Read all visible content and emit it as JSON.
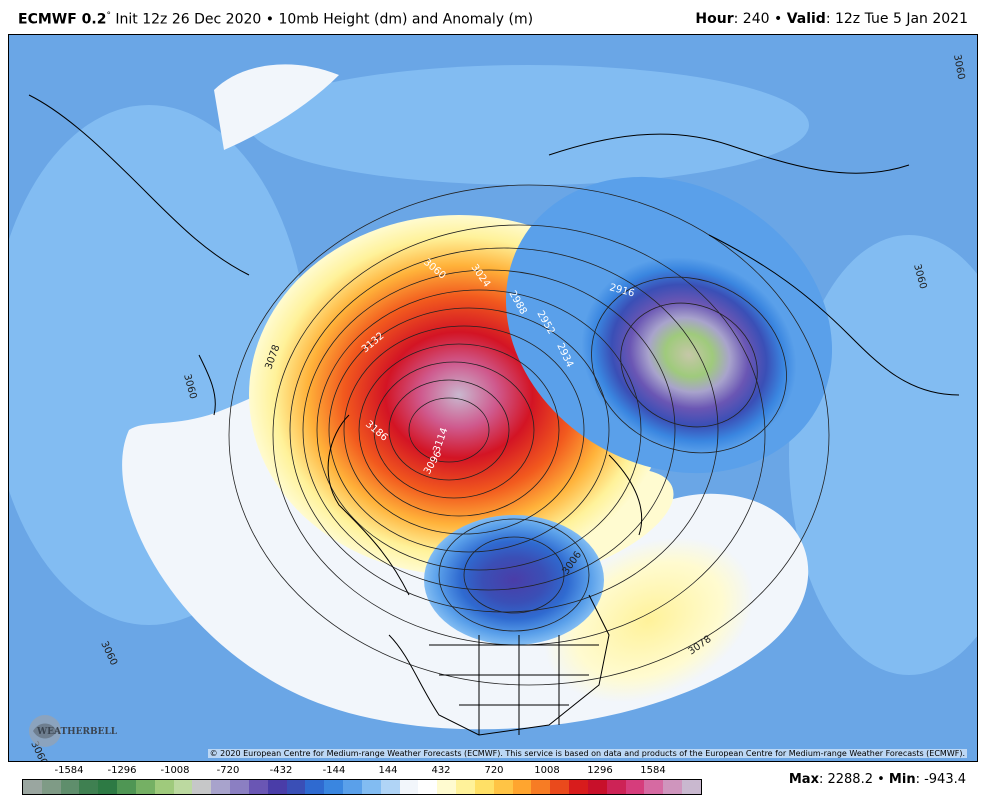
{
  "header": {
    "model": "ECMWF 0.2",
    "degree": "°",
    "init": "Init 12z 26 Dec 2020",
    "separator": "•",
    "field": "10mb Height (dm) and Anomaly (m)",
    "hour_label": "Hour",
    "hour_value": ": 240",
    "valid_label": "Valid",
    "valid_value": ": 12z Tue 5 Jan 2021"
  },
  "map": {
    "copyright": "© 2020 European Centre for Medium-range Weather Forecasts (ECMWF). This service is based on data and products of the European Centre for Medium-range Weather Forecasts (ECMWF).",
    "logo_text": "WEATHERBELL",
    "contour_labels": [
      "3060",
      "3060",
      "3078",
      "3060",
      "3132",
      "3060",
      "3024",
      "2988",
      "2952",
      "2934",
      "2916",
      "3060",
      "3114",
      "3186",
      "3096",
      "3006",
      "3078",
      "3060",
      "3060"
    ]
  },
  "colorbar": {
    "tick_labels": [
      "-1584",
      "-1296",
      "-1008",
      "-720",
      "-432",
      "-144",
      "144",
      "432",
      "720",
      "1008",
      "1296",
      "1584"
    ],
    "colors": [
      "#9aa6a0",
      "#7f9b86",
      "#5f8e6c",
      "#3f8051",
      "#2d7a44",
      "#4f9654",
      "#75b064",
      "#9fca7c",
      "#bcd9a0",
      "#c6c7c8",
      "#a8a3cc",
      "#8b7fc2",
      "#6a56b4",
      "#4a3da8",
      "#3a4fb6",
      "#2f6ad0",
      "#3a86e0",
      "#5aa0ea",
      "#82bcf2",
      "#b0d4f6",
      "#f2f6fb",
      "#ffffff",
      "#fffbd0",
      "#fff29a",
      "#ffe066",
      "#ffc445",
      "#ffa52f",
      "#f77c24",
      "#ea4a1c",
      "#d81c1c",
      "#c8102a",
      "#cd2356",
      "#d63d7c",
      "#d66aa2",
      "#cf95bd",
      "#c9b8cf"
    ]
  },
  "stats": {
    "max_label": "Max",
    "max_value": ": 2288.2",
    "separator": "•",
    "min_label": "Min",
    "min_value": ": -943.4"
  }
}
